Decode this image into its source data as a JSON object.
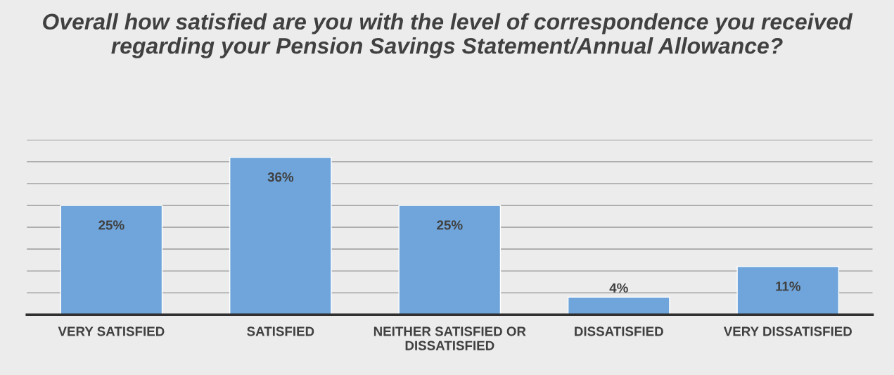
{
  "chart_data": {
    "type": "bar",
    "title": "Overall how satisfied are you with the level of correspondence you received regarding your Pension Savings Statement/Annual Allowance?",
    "categories": [
      "VERY SATISFIED",
      "SATISFIED",
      "NEITHER SATISFIED OR\nDISSATISFIED",
      "DISSATISFIED",
      "VERY DISSATISFIED"
    ],
    "values": [
      25,
      36,
      25,
      4,
      11
    ],
    "color": "#6fa5db",
    "value_labels": [
      "25%",
      "36%",
      "25%",
      "4%",
      "11%"
    ],
    "ylim": [
      0,
      40
    ],
    "yticks": [
      {
        "value": 0,
        "label": null
      },
      {
        "value": 5,
        "label": null
      },
      {
        "value": 10,
        "label": null
      },
      {
        "value": 15,
        "label": null
      },
      {
        "value": 20,
        "label": null
      },
      {
        "value": 25,
        "label": null
      },
      {
        "value": 30,
        "label": null
      },
      {
        "value": 35,
        "label": null
      },
      {
        "value": 40,
        "label": null
      }
    ],
    "tick_labels": "x",
    "grid": "y",
    "legend": false
  }
}
